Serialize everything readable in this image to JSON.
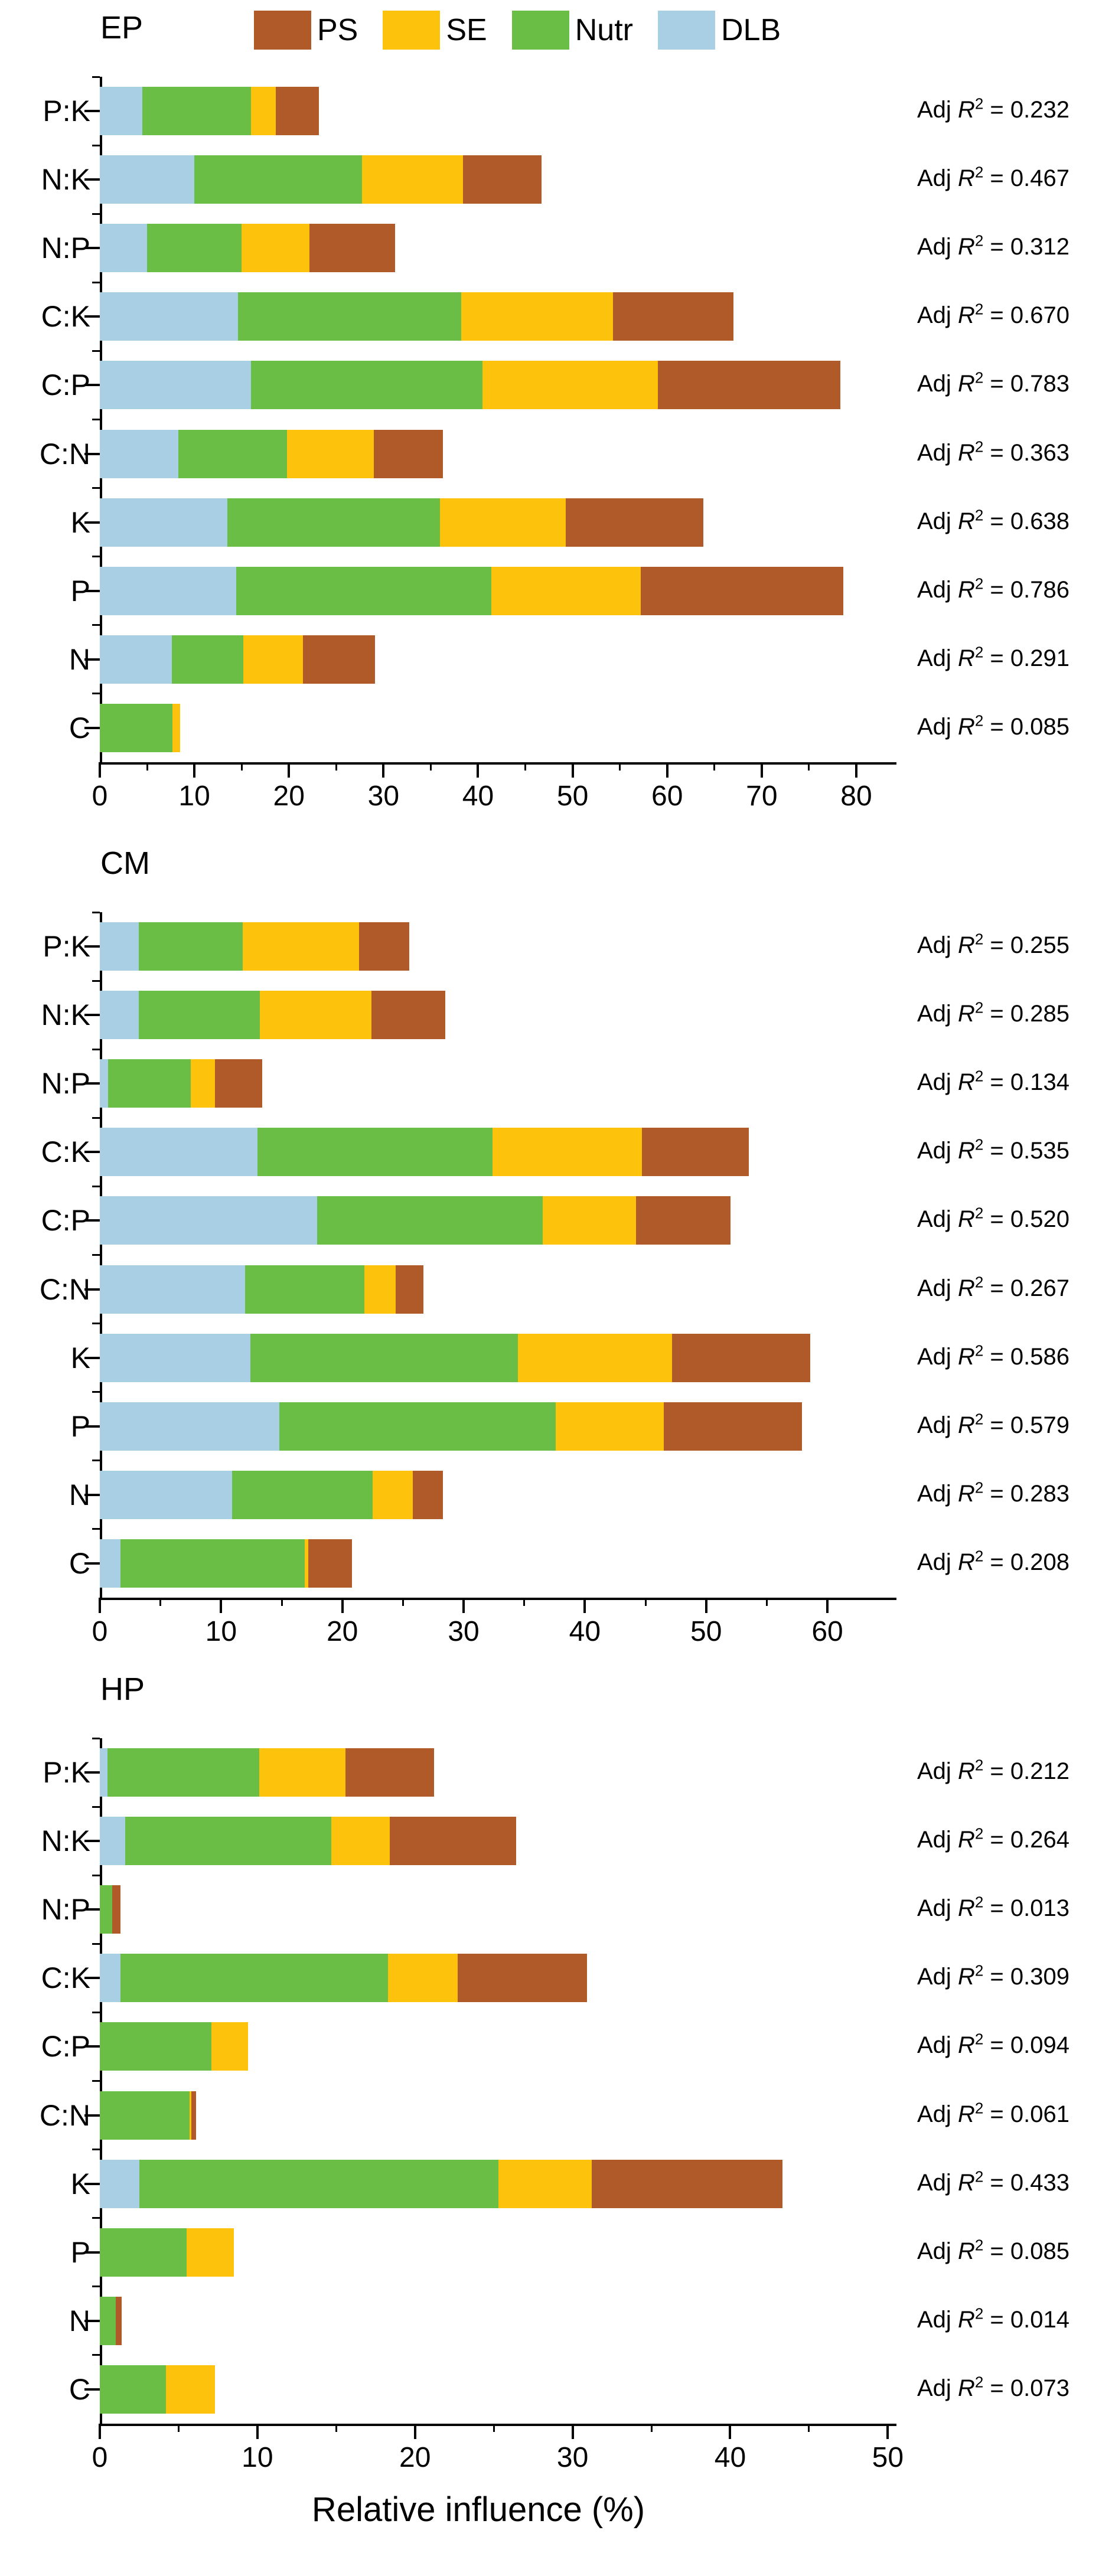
{
  "figure": {
    "xlabel": "Relative influence (%)",
    "r2_label": {
      "prefix": "Adj",
      "symbol": "R",
      "exponent": "2",
      "equals": "="
    }
  },
  "legend": {
    "entries": [
      {
        "label": "PS",
        "color": "#B05A29"
      },
      {
        "label": "SE",
        "color": "#FCC20C"
      },
      {
        "label": "Nutr",
        "color": "#6ABD45"
      },
      {
        "label": "DLB",
        "color": "#A9CFE5"
      }
    ]
  },
  "chart_data": [
    {
      "type": "bar",
      "orientation": "horizontal",
      "title": "EP",
      "categories": [
        "P:K",
        "N:K",
        "N:P",
        "C:K",
        "C:P",
        "C:N",
        "K",
        "P",
        "N",
        "C"
      ],
      "series": [
        {
          "name": "DLB",
          "color": "#A9CFE5",
          "values": [
            4.5,
            10.0,
            5.0,
            14.6,
            16.0,
            8.3,
            13.5,
            14.4,
            7.6,
            0
          ]
        },
        {
          "name": "Nutr",
          "color": "#6ABD45",
          "values": [
            11.5,
            17.7,
            10.0,
            23.6,
            24.5,
            11.5,
            22.5,
            27.0,
            7.6,
            7.7
          ]
        },
        {
          "name": "SE",
          "color": "#FCC20C",
          "values": [
            2.6,
            10.7,
            7.2,
            16.1,
            18.5,
            9.2,
            13.3,
            15.8,
            6.3,
            0.8
          ]
        },
        {
          "name": "PS",
          "color": "#B05A29",
          "values": [
            4.6,
            8.3,
            9.0,
            12.7,
            19.3,
            7.3,
            14.5,
            21.4,
            7.6,
            0
          ]
        }
      ],
      "adj_r2": [
        "0.232",
        "0.467",
        "0.312",
        "0.670",
        "0.783",
        "0.363",
        "0.638",
        "0.786",
        "0.291",
        "0.085"
      ],
      "xticks": [
        0,
        10,
        20,
        30,
        40,
        50,
        60,
        70,
        80
      ],
      "xlim": [
        0,
        84
      ],
      "grid": false,
      "legend_position": "top"
    },
    {
      "type": "bar",
      "orientation": "horizontal",
      "title": "CM",
      "categories": [
        "P:K",
        "N:K",
        "N:P",
        "C:K",
        "C:P",
        "C:N",
        "K",
        "P",
        "N",
        "C"
      ],
      "series": [
        {
          "name": "DLB",
          "color": "#A9CFE5",
          "values": [
            3.2,
            3.2,
            0.7,
            13.0,
            17.9,
            12.0,
            12.4,
            14.8,
            10.9,
            1.7
          ]
        },
        {
          "name": "Nutr",
          "color": "#6ABD45",
          "values": [
            8.6,
            10.0,
            6.8,
            19.4,
            18.6,
            9.8,
            22.1,
            22.8,
            11.6,
            15.2
          ]
        },
        {
          "name": "SE",
          "color": "#FCC20C",
          "values": [
            9.6,
            9.2,
            2.0,
            12.3,
            7.7,
            2.6,
            12.7,
            8.9,
            3.3,
            0.3
          ]
        },
        {
          "name": "PS",
          "color": "#B05A29",
          "values": [
            4.1,
            6.1,
            3.9,
            8.8,
            7.8,
            2.3,
            11.4,
            11.4,
            2.5,
            3.6
          ]
        }
      ],
      "adj_r2": [
        "0.255",
        "0.285",
        "0.134",
        "0.535",
        "0.520",
        "0.267",
        "0.586",
        "0.579",
        "0.283",
        "0.208"
      ],
      "xticks": [
        0,
        10,
        20,
        30,
        40,
        50,
        60
      ],
      "xlim": [
        0,
        65.5
      ],
      "grid": false,
      "legend_position": "none"
    },
    {
      "type": "bar",
      "orientation": "horizontal",
      "title": "HP",
      "categories": [
        "P:K",
        "N:K",
        "N:P",
        "C:K",
        "C:P",
        "C:N",
        "K",
        "P",
        "N",
        "C"
      ],
      "series": [
        {
          "name": "DLB",
          "color": "#A9CFE5",
          "values": [
            0.5,
            1.6,
            0,
            1.3,
            0,
            0,
            2.5,
            0,
            0,
            0
          ]
        },
        {
          "name": "Nutr",
          "color": "#6ABD45",
          "values": [
            9.6,
            13.1,
            0.8,
            17.0,
            7.1,
            5.7,
            22.8,
            5.5,
            1.0,
            4.2
          ]
        },
        {
          "name": "SE",
          "color": "#FCC20C",
          "values": [
            5.5,
            3.7,
            0,
            4.4,
            2.3,
            0.1,
            5.9,
            3.0,
            0,
            3.1
          ]
        },
        {
          "name": "PS",
          "color": "#B05A29",
          "values": [
            5.6,
            8.0,
            0.5,
            8.2,
            0,
            0.3,
            12.1,
            0,
            0.4,
            0
          ]
        }
      ],
      "adj_r2": [
        "0.212",
        "0.264",
        "0.013",
        "0.309",
        "0.094",
        "0.061",
        "0.433",
        "0.085",
        "0.014",
        "0.073"
      ],
      "xticks": [
        0,
        10,
        20,
        30,
        40,
        50
      ],
      "xlim": [
        0,
        50.4
      ],
      "grid": false,
      "legend_position": "none"
    }
  ]
}
